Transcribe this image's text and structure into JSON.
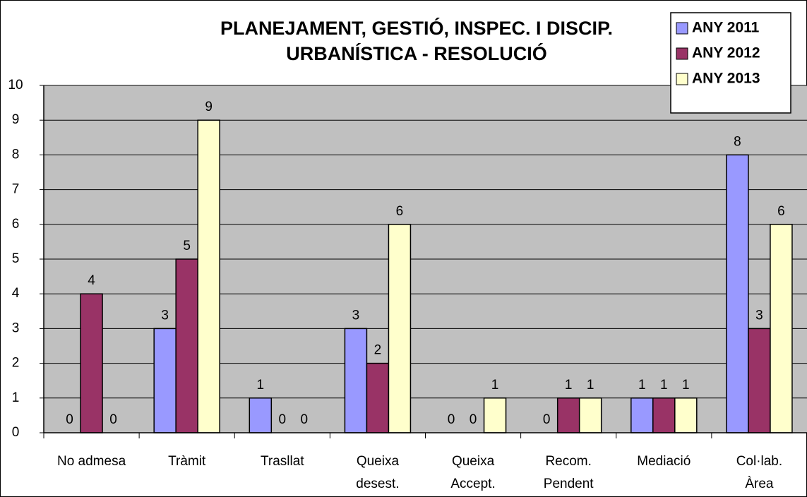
{
  "chart_data": {
    "type": "bar",
    "title": [
      "PLANEJAMENT, GESTIÓ, INSPEC. I DISCIP.",
      "URBANÍSTICA - RESOLUCIÓ"
    ],
    "categories": [
      [
        "No admesa"
      ],
      [
        "Tràmit"
      ],
      [
        "Trasllat"
      ],
      [
        "Queixa",
        "desest."
      ],
      [
        "Queixa",
        "Accept."
      ],
      [
        "Recom.",
        "Pendent"
      ],
      [
        "Mediació"
      ],
      [
        "Col·lab.",
        "Àrea"
      ]
    ],
    "series": [
      {
        "name": "ANY 2011",
        "color": "#9999ff",
        "values": [
          0,
          3,
          1,
          3,
          0,
          0,
          1,
          8
        ]
      },
      {
        "name": "ANY 2012",
        "color": "#993366",
        "values": [
          4,
          5,
          0,
          2,
          0,
          1,
          1,
          3
        ]
      },
      {
        "name": "ANY 2013",
        "color": "#ffffcc",
        "values": [
          0,
          9,
          0,
          6,
          1,
          1,
          1,
          6
        ]
      }
    ],
    "ylim": [
      0,
      10
    ],
    "yticks": [
      0,
      1,
      2,
      3,
      4,
      5,
      6,
      7,
      8,
      9,
      10
    ],
    "grid": true,
    "legend": "top-right"
  }
}
